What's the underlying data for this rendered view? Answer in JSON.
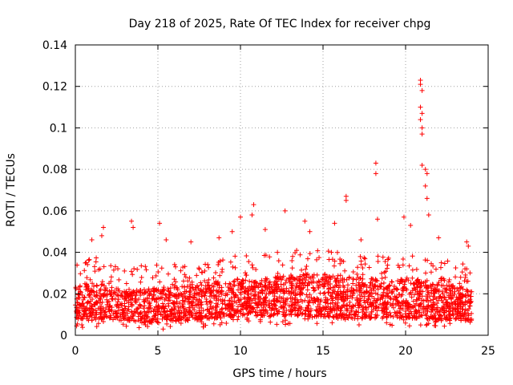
{
  "chart_data": {
    "type": "scatter",
    "title": "Day 218 of 2025, Rate Of TEC Index for receiver chpg",
    "xlabel": "GPS time / hours",
    "ylabel": "ROTI / TECUs",
    "xlim": [
      0,
      25
    ],
    "ylim": [
      0,
      0.14
    ],
    "xticks": [
      0,
      5,
      10,
      15,
      20,
      25
    ],
    "yticks": [
      0,
      0.02,
      0.04,
      0.06,
      0.08,
      0.1,
      0.12,
      0.14
    ],
    "xtick_labels": [
      "0",
      "5",
      "10",
      "15",
      "20",
      "25"
    ],
    "ytick_labels": [
      "0",
      "0.02",
      "0.04",
      "0.06",
      "0.08",
      "0.1",
      "0.12",
      "0.14"
    ],
    "grid": true,
    "marker": "+",
    "color": "#ff0000",
    "envelope": {
      "x": [
        0,
        1,
        2,
        3,
        4,
        5,
        6,
        7,
        8,
        9,
        10,
        11,
        12,
        13,
        14,
        15,
        16,
        17,
        18,
        19,
        20,
        21,
        22,
        23,
        24
      ],
      "y_low": [
        0.008,
        0.007,
        0.007,
        0.007,
        0.006,
        0.006,
        0.007,
        0.007,
        0.008,
        0.008,
        0.009,
        0.009,
        0.009,
        0.009,
        0.009,
        0.009,
        0.008,
        0.008,
        0.008,
        0.008,
        0.008,
        0.008,
        0.007,
        0.007,
        0.007
      ],
      "y_high": [
        0.024,
        0.026,
        0.024,
        0.022,
        0.022,
        0.023,
        0.024,
        0.024,
        0.025,
        0.026,
        0.027,
        0.027,
        0.028,
        0.029,
        0.03,
        0.03,
        0.029,
        0.028,
        0.028,
        0.027,
        0.027,
        0.027,
        0.025,
        0.024,
        0.023
      ]
    },
    "peaks": [
      {
        "x": 1.0,
        "y": 0.046
      },
      {
        "x": 1.6,
        "y": 0.048
      },
      {
        "x": 1.7,
        "y": 0.052
      },
      {
        "x": 3.4,
        "y": 0.055
      },
      {
        "x": 3.5,
        "y": 0.052
      },
      {
        "x": 5.1,
        "y": 0.054
      },
      {
        "x": 5.5,
        "y": 0.046
      },
      {
        "x": 7.0,
        "y": 0.045
      },
      {
        "x": 8.7,
        "y": 0.047
      },
      {
        "x": 9.5,
        "y": 0.05
      },
      {
        "x": 10.0,
        "y": 0.057
      },
      {
        "x": 10.8,
        "y": 0.063
      },
      {
        "x": 10.7,
        "y": 0.058
      },
      {
        "x": 11.5,
        "y": 0.051
      },
      {
        "x": 12.7,
        "y": 0.06
      },
      {
        "x": 13.9,
        "y": 0.055
      },
      {
        "x": 14.2,
        "y": 0.05
      },
      {
        "x": 15.7,
        "y": 0.054
      },
      {
        "x": 16.4,
        "y": 0.067
      },
      {
        "x": 16.4,
        "y": 0.065
      },
      {
        "x": 17.3,
        "y": 0.046
      },
      {
        "x": 18.2,
        "y": 0.083
      },
      {
        "x": 18.2,
        "y": 0.078
      },
      {
        "x": 18.3,
        "y": 0.056
      },
      {
        "x": 19.9,
        "y": 0.057
      },
      {
        "x": 20.3,
        "y": 0.053
      },
      {
        "x": 20.9,
        "y": 0.123
      },
      {
        "x": 20.9,
        "y": 0.121
      },
      {
        "x": 21.0,
        "y": 0.118
      },
      {
        "x": 20.9,
        "y": 0.11
      },
      {
        "x": 21.0,
        "y": 0.107
      },
      {
        "x": 20.9,
        "y": 0.104
      },
      {
        "x": 21.0,
        "y": 0.1
      },
      {
        "x": 21.0,
        "y": 0.097
      },
      {
        "x": 21.0,
        "y": 0.082
      },
      {
        "x": 21.2,
        "y": 0.08
      },
      {
        "x": 21.3,
        "y": 0.078
      },
      {
        "x": 21.2,
        "y": 0.072
      },
      {
        "x": 21.3,
        "y": 0.066
      },
      {
        "x": 21.4,
        "y": 0.058
      },
      {
        "x": 22.0,
        "y": 0.047
      },
      {
        "x": 23.7,
        "y": 0.045
      },
      {
        "x": 23.8,
        "y": 0.043
      },
      {
        "x": 23.7,
        "y": 0.032
      }
    ]
  }
}
